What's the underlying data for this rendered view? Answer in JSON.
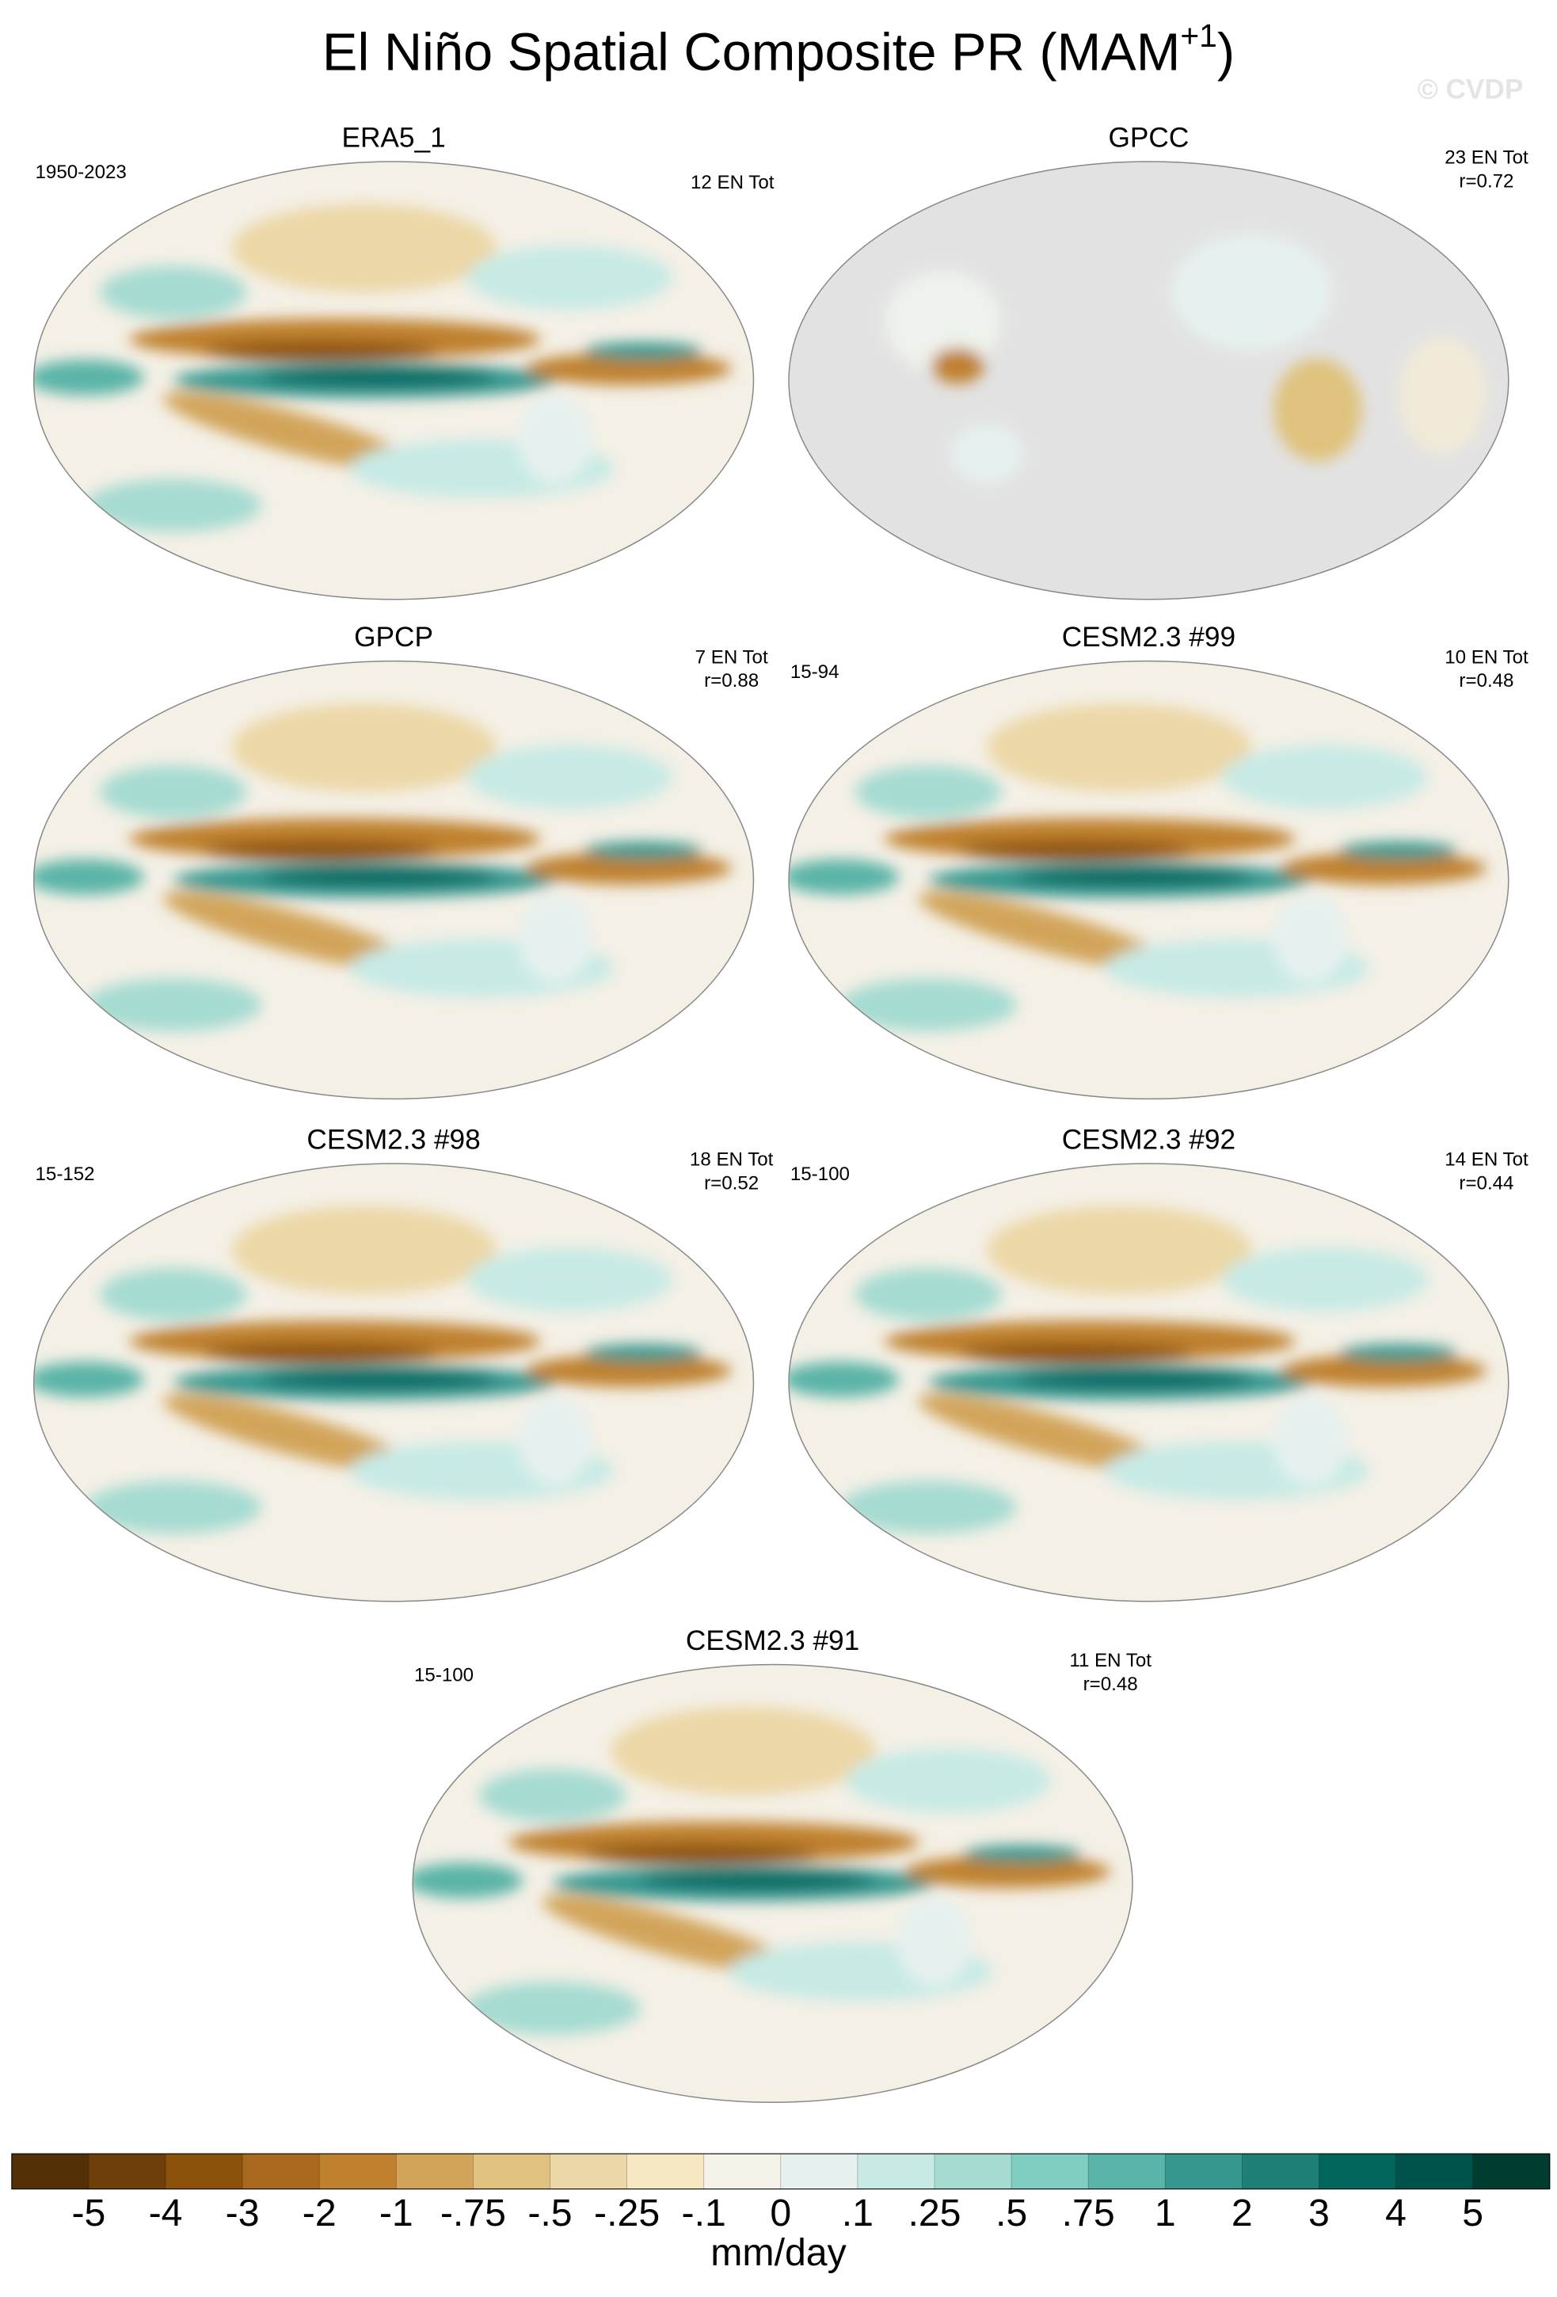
{
  "title_parts": [
    "El Niño Spatial Composite PR (MAM",
    "+1",
    ")"
  ],
  "watermark": "© CVDP",
  "panels": [
    {
      "title": "ERA5_1",
      "left_label": "1950-2023",
      "right_label": [
        "12 EN Tot"
      ]
    },
    {
      "title": "GPCC",
      "right_label": [
        "23 EN Tot",
        "r=0.72"
      ]
    },
    {
      "title": "GPCP",
      "right_label": [
        "7 EN Tot",
        "r=0.88"
      ]
    },
    {
      "title": "CESM2.3 #99",
      "left_label": "15-94",
      "right_label": [
        "10 EN Tot",
        "r=0.48"
      ]
    },
    {
      "title": "CESM2.3 #98",
      "left_label": "15-152",
      "right_label": [
        "18 EN Tot",
        "r=0.52"
      ]
    },
    {
      "title": "CESM2.3 #92",
      "left_label": "15-100",
      "right_label": [
        "14 EN Tot",
        "r=0.44"
      ]
    },
    {
      "title": "CESM2.3 #91",
      "left_label": "15-100",
      "right_label": [
        "11 EN Tot",
        "r=0.48"
      ]
    }
  ],
  "colorbar": {
    "colors": [
      "#543005",
      "#6f3f0a",
      "#8c510a",
      "#a8691e",
      "#bf812d",
      "#d2a45a",
      "#dfc27d",
      "#ecd7a6",
      "#f6e8c3",
      "#f5f2ea",
      "#e6f1ef",
      "#c7eae5",
      "#a6dbd2",
      "#80cdc1",
      "#5ab4a7",
      "#35978f",
      "#1d7f76",
      "#01665e",
      "#00534a",
      "#003c30"
    ],
    "ticks": [
      -5,
      -4,
      -3,
      -2,
      -1,
      {
        "value": -0.75,
        "label": "-.75"
      },
      {
        "value": -0.5,
        "label": "-.5"
      },
      {
        "value": -0.25,
        "label": "-.25"
      },
      {
        "value": -0.1,
        "label": "-.1"
      },
      0,
      {
        "value": 0.1,
        "label": ".1"
      },
      {
        "value": 0.25,
        "label": ".25"
      },
      {
        "value": 0.5,
        "label": ".5"
      },
      {
        "value": 0.75,
        "label": ".75"
      },
      1,
      2,
      3,
      4,
      5
    ],
    "label": "mm/day"
  }
}
